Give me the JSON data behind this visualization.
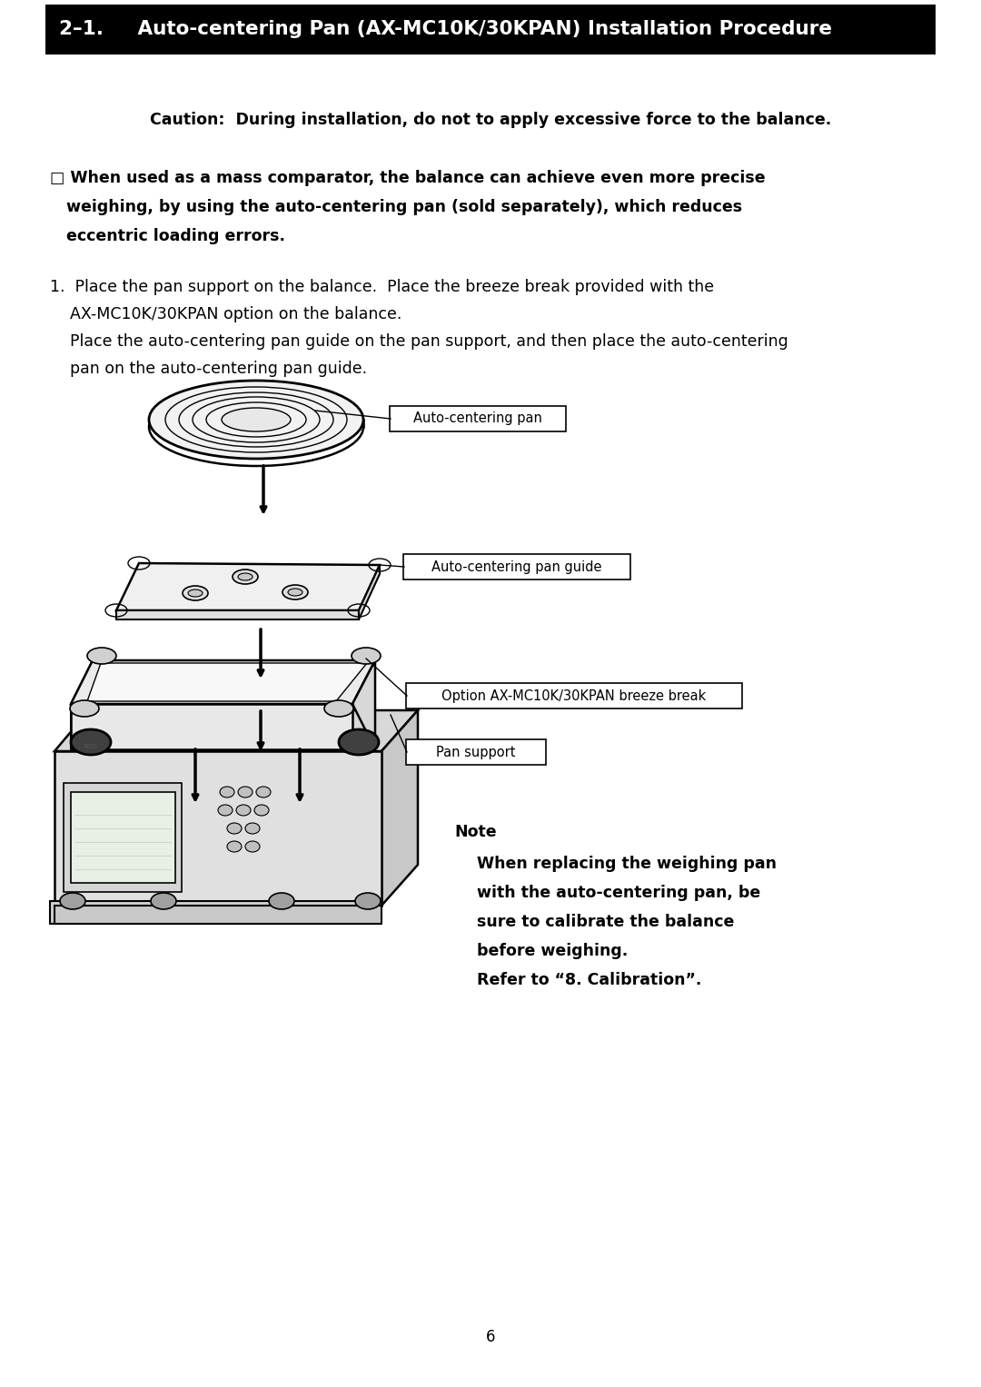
{
  "page_bg": "#ffffff",
  "header_bg": "#000000",
  "header_text_color": "#ffffff",
  "header_text": "2–1.     Auto-centering Pan (AX-MC10K/30KPAN) Installation Procedure",
  "header_fontsize": 15.5,
  "caution_text": "Caution:  During installation, do not to apply excessive force to the balance.",
  "caution_fontsize": 12.5,
  "bullet_lines": [
    "□ When used as a mass comparator, the balance can achieve even more precise",
    "   weighing, by using the auto-centering pan (sold separately), which reduces",
    "   eccentric loading errors."
  ],
  "bullet_fontsize": 12.5,
  "step_lines": [
    "1.  Place the pan support on the balance.  Place the breeze break provided with the",
    "    AX-MC10K/30KPAN option on the balance.",
    "    Place the auto-centering pan guide on the pan support, and then place the auto-centering",
    "    pan on the auto-centering pan guide."
  ],
  "step_fontsize": 12.5,
  "label_pan": "Auto-centering pan",
  "label_guide": "Auto-centering pan guide",
  "label_breeze": "Option AX-MC10K/30KPAN breeze break",
  "label_support": "Pan support",
  "label_fontsize": 10.5,
  "note_title": "Note",
  "note_lines": [
    "When replacing the weighing pan",
    "with the auto-centering pan, be",
    "sure to calibrate the balance",
    "before weighing.",
    "Refer to “8. Calibration”."
  ],
  "note_fontsize": 12.5,
  "page_number": "6"
}
